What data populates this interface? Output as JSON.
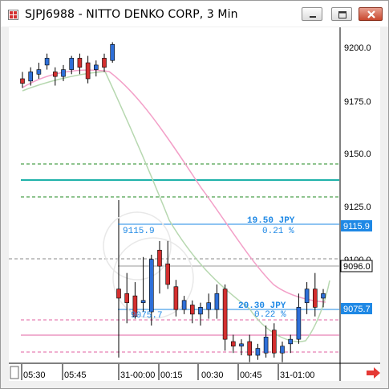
{
  "window": {
    "title": "SJPJ6988 - NITTO DENKO CORP, 3 Min"
  },
  "chart_data": {
    "type": "candlestick",
    "y_axis": {
      "labels": [
        "9200.0",
        "9175.0",
        "9150.0",
        "9125.0",
        "9100.0"
      ],
      "range": [
        9063.5,
        9210.5
      ]
    },
    "x_axis": {
      "labels": [
        "05:30",
        "05:45",
        "31-00:00",
        "00:15",
        "00:30",
        "00:45",
        "31-01:00"
      ]
    },
    "price_tags": [
      {
        "label": "9115.9",
        "value": 9115.9,
        "bg": "#1e88e5",
        "fg": "#ffffff"
      },
      {
        "label": "9096.0",
        "value": 9096.0,
        "bg": "#ffffff",
        "fg": "#000000"
      },
      {
        "label": "9075.7",
        "value": 9075.7,
        "bg": "#1e88e5",
        "fg": "#ffffff"
      }
    ],
    "measurements": [
      {
        "price_label": "9115.9",
        "delta": "19.50  JPY",
        "percent": "0.21 %"
      },
      {
        "price_label": "9075.7",
        "delta": "20.30  JPY",
        "percent": "0.22 %"
      }
    ],
    "session1_candles": [
      {
        "o": 9188,
        "h": 9191,
        "l": 9184,
        "c": 9186
      },
      {
        "o": 9187,
        "h": 9193,
        "l": 9185,
        "c": 9191
      },
      {
        "o": 9190,
        "h": 9195,
        "l": 9188,
        "c": 9192
      },
      {
        "o": 9194,
        "h": 9199,
        "l": 9192,
        "c": 9197
      },
      {
        "o": 9191,
        "h": 9193,
        "l": 9185,
        "c": 9189
      },
      {
        "o": 9189,
        "h": 9194,
        "l": 9187,
        "c": 9192
      },
      {
        "o": 9192,
        "h": 9198,
        "l": 9190,
        "c": 9197
      },
      {
        "o": 9197,
        "h": 9199,
        "l": 9190,
        "c": 9193
      },
      {
        "o": 9195,
        "h": 9198,
        "l": 9186,
        "c": 9188
      },
      {
        "o": 9192,
        "h": 9196,
        "l": 9189,
        "c": 9194
      },
      {
        "o": 9197,
        "h": 9199,
        "l": 9191,
        "c": 9193
      },
      {
        "o": 9196,
        "h": 9204,
        "l": 9195,
        "c": 9203
      }
    ],
    "session2_candles": [
      {
        "o": 9096,
        "h": 9111,
        "l": 9066,
        "c": 9092
      },
      {
        "o": 9094,
        "h": 9103,
        "l": 9081,
        "c": 9090
      },
      {
        "o": 9093,
        "h": 9099,
        "l": 9083,
        "c": 9084
      },
      {
        "o": 9090,
        "h": 9110,
        "l": 9086,
        "c": 9091
      },
      {
        "o": 9086,
        "h": 9111,
        "l": 9080,
        "c": 9109
      },
      {
        "o": 9113,
        "h": 9117,
        "l": 9094,
        "c": 9106
      },
      {
        "o": 9107,
        "h": 9117,
        "l": 9096,
        "c": 9098
      },
      {
        "o": 9097,
        "h": 9100,
        "l": 9084,
        "c": 9087
      },
      {
        "o": 9087,
        "h": 9093,
        "l": 9085,
        "c": 9091
      },
      {
        "o": 9089,
        "h": 9091,
        "l": 9081,
        "c": 9085
      },
      {
        "o": 9085,
        "h": 9090,
        "l": 9080,
        "c": 9088
      },
      {
        "o": 9087,
        "h": 9094,
        "l": 9083,
        "c": 9090
      },
      {
        "o": 9087,
        "h": 9098,
        "l": 9083,
        "c": 9094
      },
      {
        "o": 9096,
        "h": 9098,
        "l": 9069,
        "c": 9074
      },
      {
        "o": 9073,
        "h": 9076,
        "l": 9068,
        "c": 9071
      },
      {
        "o": 9071,
        "h": 9074,
        "l": 9067,
        "c": 9072
      },
      {
        "o": 9073,
        "h": 9076,
        "l": 9064,
        "c": 9067
      },
      {
        "o": 9067,
        "h": 9072,
        "l": 9065,
        "c": 9070
      },
      {
        "o": 9068,
        "h": 9080,
        "l": 9066,
        "c": 9075
      },
      {
        "o": 9078,
        "h": 9081,
        "l": 9066,
        "c": 9068
      },
      {
        "o": 9068,
        "h": 9073,
        "l": 9064,
        "c": 9071
      },
      {
        "o": 9072,
        "h": 9076,
        "l": 9068,
        "c": 9074
      },
      {
        "o": 9074,
        "h": 9094,
        "l": 9072,
        "c": 9088
      },
      {
        "o": 9090,
        "h": 9099,
        "l": 9085,
        "c": 9096
      },
      {
        "o": 9096,
        "h": 9103,
        "l": 9084,
        "c": 9088
      },
      {
        "o": 9092,
        "h": 9096,
        "l": 9088,
        "c": 9094
      }
    ],
    "up_color": "#2e6fd8",
    "down_color": "#d32f2f"
  }
}
